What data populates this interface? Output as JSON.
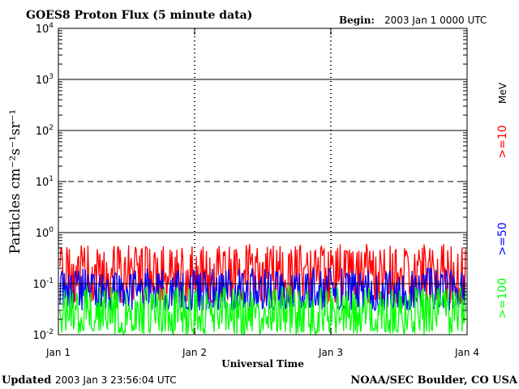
{
  "header": {
    "title": "GOES8 Proton Flux (5 minute data)",
    "begin_label": "Begin:",
    "begin_value": "2003 Jan 1 0000 UTC"
  },
  "footer": {
    "updated_label": "Updated",
    "updated_value": "2003 Jan  3 23:56:04 UTC",
    "credit": "NOAA/SEC Boulder, CO USA"
  },
  "chart_data": {
    "type": "line",
    "title": "GOES8 Proton Flux (5 minute data)",
    "xlabel": "Universal Time",
    "ylabel": "Particles cm⁻²s⁻¹sr⁻¹",
    "y_scale": "log",
    "ylim": [
      0.01,
      10000
    ],
    "y_ticks": [
      {
        "value": 0.01,
        "base": "10",
        "exp": "-2"
      },
      {
        "value": 0.1,
        "base": "10",
        "exp": "-1"
      },
      {
        "value": 1,
        "base": "10",
        "exp": "0"
      },
      {
        "value": 10,
        "base": "10",
        "exp": "1"
      },
      {
        "value": 100,
        "base": "10",
        "exp": "2"
      },
      {
        "value": 1000,
        "base": "10",
        "exp": "3"
      },
      {
        "value": 10000,
        "base": "10",
        "exp": "4"
      }
    ],
    "x_ticks": [
      "Jan 1",
      "Jan 2",
      "Jan 3",
      "Jan 4"
    ],
    "xlim": [
      "2003-01-01 00:00",
      "2003-01-04 00:00"
    ],
    "threshold_lines": [
      {
        "value": 10,
        "style": "dashed"
      },
      {
        "value": 0.1,
        "style": "solid"
      }
    ],
    "grid": "horizontal at each decade",
    "legend_position": "right, vertical",
    "series": [
      {
        "name": ">=10",
        "unit": "MeV",
        "color": "#ff0000",
        "typical": 0.15,
        "range": [
          0.04,
          0.6
        ]
      },
      {
        "name": ">=50",
        "unit": "",
        "color": "#0000ff",
        "typical": 0.07,
        "range": [
          0.03,
          0.2
        ]
      },
      {
        "name": ">=100",
        "unit": "",
        "color": "#00ff00",
        "typical": 0.03,
        "range": [
          0.01,
          0.09
        ]
      }
    ]
  }
}
